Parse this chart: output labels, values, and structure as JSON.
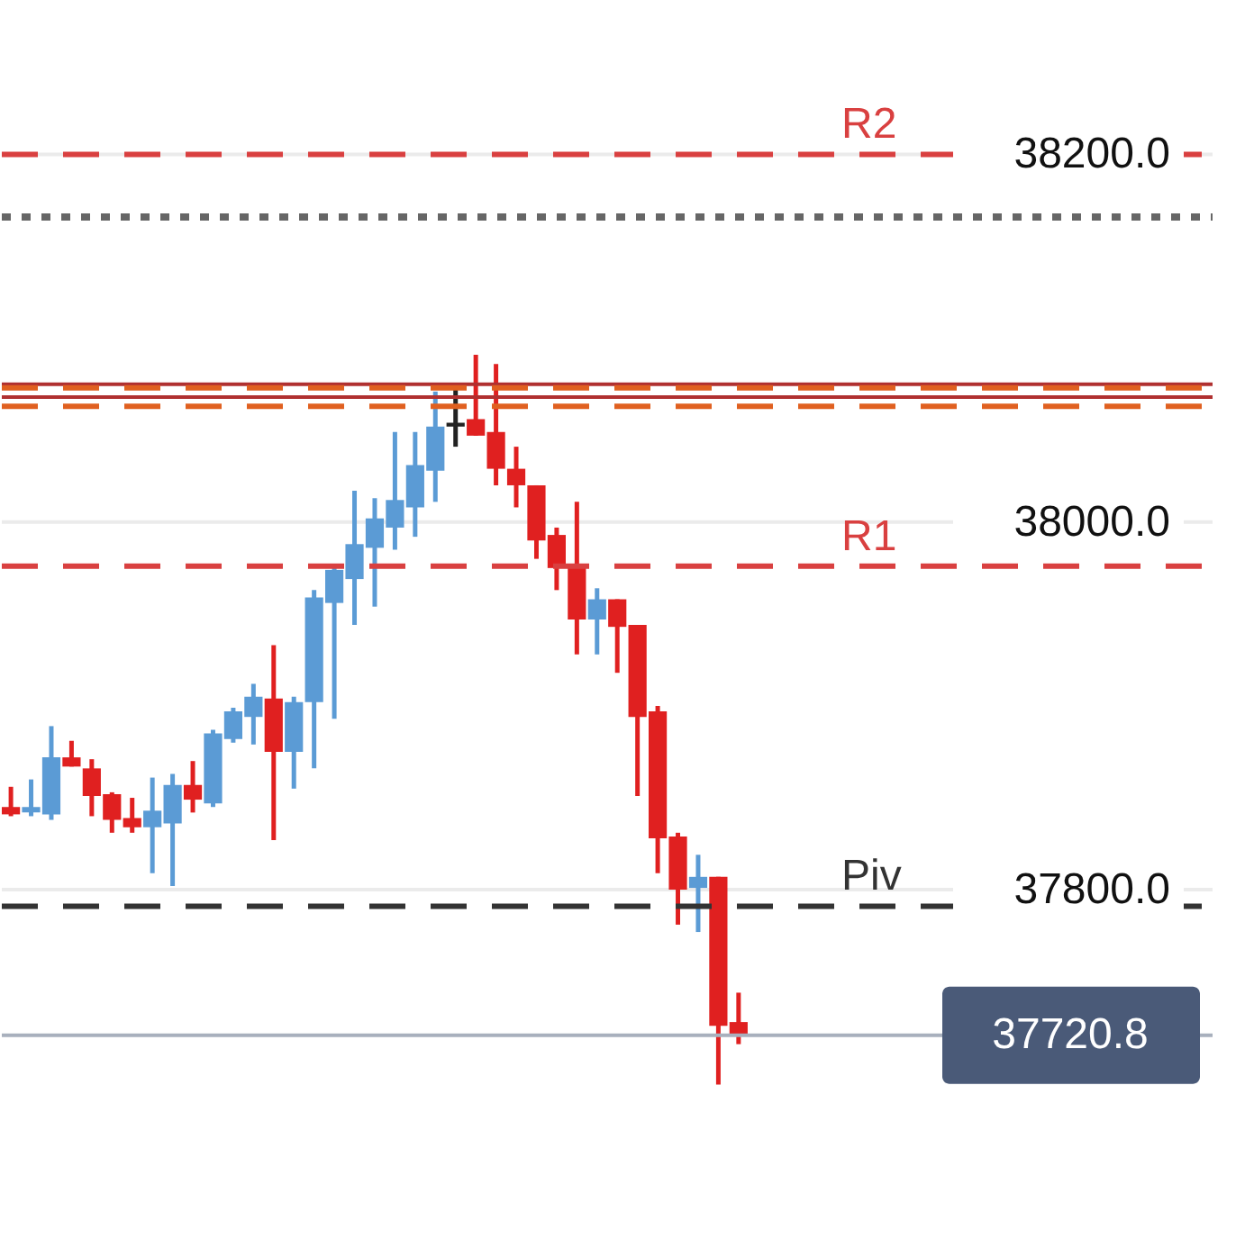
{
  "chart_data": {
    "type": "candlestick",
    "categories": [
      null,
      null,
      null,
      null,
      null,
      null,
      null,
      null,
      null,
      null,
      null,
      null,
      null,
      null,
      null,
      null,
      null,
      null,
      null,
      null,
      null,
      null,
      null,
      null,
      null,
      null,
      null,
      null,
      null,
      null,
      null,
      null,
      null,
      null,
      null,
      null,
      null,
      null,
      null,
      null,
      null,
      null,
      null,
      null,
      null,
      null,
      null,
      null,
      null,
      null,
      null,
      null,
      null,
      null,
      null,
      null,
      null,
      null,
      null,
      null
    ],
    "ohlc": [
      [
        37845,
        37856,
        37840,
        37841
      ],
      [
        37842,
        37860,
        37840,
        37845
      ],
      [
        37841,
        37889,
        37838,
        37872
      ],
      [
        37872,
        37881,
        37867,
        37867
      ],
      [
        37866,
        37871,
        37840,
        37851
      ],
      [
        37852,
        37853,
        37831,
        37838
      ],
      [
        37839,
        37850,
        37831,
        37834
      ],
      [
        37834,
        37861,
        37809,
        37843
      ],
      [
        37836,
        37863,
        37802,
        37857
      ],
      [
        37857,
        37870,
        37842,
        37849
      ],
      [
        37847,
        37887,
        37845,
        37885
      ],
      [
        37882,
        37899,
        37880,
        37897
      ],
      [
        37894,
        37912,
        37879,
        37905
      ],
      [
        37904,
        37933,
        37827,
        37875
      ],
      [
        37875,
        37905,
        37855,
        37902
      ],
      [
        37902,
        37963,
        37866,
        37959
      ],
      [
        37956,
        37975,
        37893,
        37974
      ],
      [
        37969,
        38017,
        37944,
        37988
      ],
      [
        37986,
        38013,
        37954,
        38002
      ],
      [
        37997,
        38049,
        37985,
        38012
      ],
      [
        38008,
        38049,
        37992,
        38031
      ],
      [
        38028,
        38071,
        38011,
        38052
      ],
      [
        38054,
        38072,
        38041,
        38052
      ],
      [
        38056,
        38091,
        38047,
        38047
      ],
      [
        38049,
        38086,
        38020,
        38029
      ],
      [
        38029,
        38041,
        38008,
        38020
      ],
      [
        38020,
        38020,
        37980,
        37990
      ],
      [
        37993,
        37997,
        37963,
        37975
      ],
      [
        37976,
        38011,
        37928,
        37947
      ],
      [
        37947,
        37964,
        37928,
        37958
      ],
      [
        37958,
        37958,
        37918,
        37943
      ],
      [
        37944,
        37944,
        37851,
        37894
      ],
      [
        37897,
        37900,
        37809,
        37828
      ],
      [
        37829,
        37831,
        37781,
        37800
      ],
      [
        37801,
        37819,
        37777,
        37807
      ],
      [
        37807,
        37807,
        37694,
        37726
      ],
      [
        37728,
        37744,
        37716,
        37720.8
      ],
      null,
      null,
      null,
      null,
      null,
      null,
      null,
      null,
      null,
      null,
      null,
      null,
      null,
      null,
      null,
      null,
      null,
      null,
      null,
      null,
      null,
      null,
      null
    ],
    "colors": [
      "#e02020",
      "#5b9bd5",
      "#5b9bd5",
      "#e02020",
      "#e02020",
      "#e02020",
      "#e02020",
      "#5b9bd5",
      "#5b9bd5",
      "#e02020",
      "#5b9bd5",
      "#5b9bd5",
      "#5b9bd5",
      "#e02020",
      "#5b9bd5",
      "#5b9bd5",
      "#5b9bd5",
      "#5b9bd5",
      "#5b9bd5",
      "#5b9bd5",
      "#5b9bd5",
      "#5b9bd5",
      "#222222",
      "#e02020",
      "#e02020",
      "#e02020",
      "#e02020",
      "#e02020",
      "#e02020",
      "#5b9bd5",
      "#e02020",
      "#e02020",
      "#e02020",
      "#e02020",
      "#5b9bd5",
      "#e02020",
      "#e02020",
      null,
      null,
      null,
      null,
      null,
      null,
      null,
      null,
      null,
      null,
      null,
      null,
      null,
      null,
      null,
      null,
      null,
      null,
      null,
      null,
      null,
      null,
      null
    ],
    "ylim": [
      37610,
      38284
    ],
    "yticks": [
      {
        "value": 37800,
        "label": "37800.0"
      },
      {
        "value": 38000,
        "label": "38000.0"
      },
      {
        "value": 38200,
        "label": "38200.0"
      }
    ],
    "grid": "y",
    "ref_lines": [
      {
        "axis": "y",
        "value": 38200,
        "label": "R2",
        "color": "#d94040",
        "line_style": "dashed"
      },
      {
        "axis": "y",
        "value": 38166,
        "color": "#666666",
        "line_style": "dotted"
      },
      {
        "axis": "y",
        "value": 38075,
        "color": "#b03030",
        "line_style": "solid"
      },
      {
        "axis": "y",
        "value": 38073,
        "color": "#e06020",
        "line_style": "dashed"
      },
      {
        "axis": "y",
        "value": 38068,
        "color": "#b03030",
        "line_style": "solid"
      },
      {
        "axis": "y",
        "value": 38063,
        "color": "#e06020",
        "line_style": "dashed"
      },
      {
        "axis": "y",
        "value": 37976,
        "label": "R1",
        "color": "#d94040",
        "line_style": "dashed"
      },
      {
        "axis": "y",
        "value": 37791,
        "label": "Piv",
        "color": "#333333",
        "line_style": "dashed"
      },
      {
        "axis": "y",
        "value": 37720.8,
        "color": "#a8b0bd",
        "line_style": "solid"
      }
    ],
    "annotations": [
      {
        "text": "37720.8",
        "y": 37720.8
      }
    ]
  }
}
